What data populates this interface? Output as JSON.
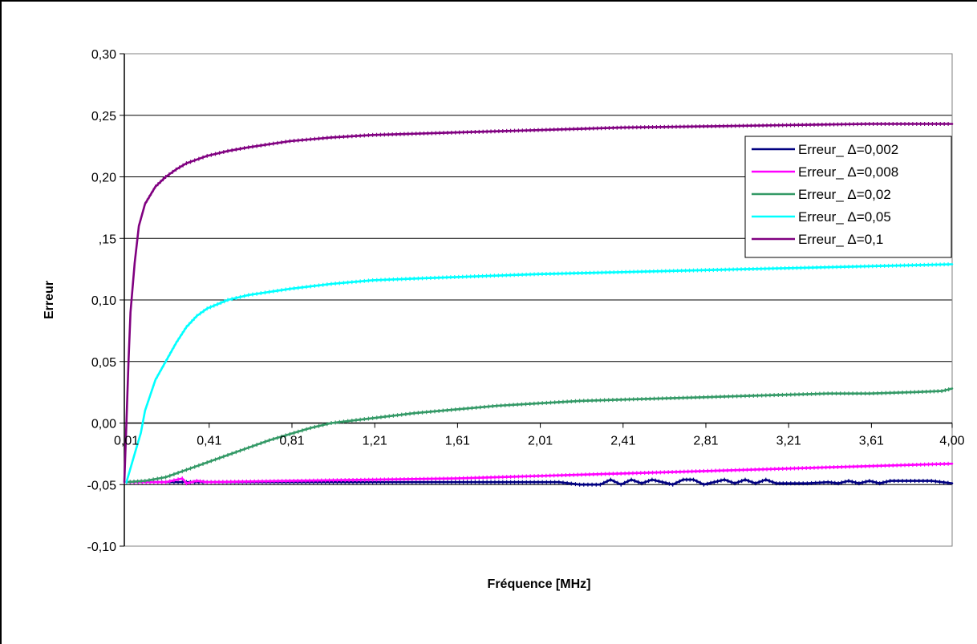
{
  "chart_data": {
    "type": "line",
    "title": "",
    "xlabel": "Fréquence [MHz]",
    "ylabel": "Erreur",
    "xlim": [
      0.0,
      4.0
    ],
    "ylim": [
      -0.1,
      0.3
    ],
    "grid": true,
    "legend_position": "right",
    "y_ticks": [
      {
        "value": 0.3,
        "label": "0,30"
      },
      {
        "value": 0.25,
        "label": "0,25"
      },
      {
        "value": 0.2,
        "label": "0,20"
      },
      {
        "value": 0.15,
        "label": ",15"
      },
      {
        "value": 0.1,
        "label": "0,10"
      },
      {
        "value": 0.05,
        "label": "0,05"
      },
      {
        "value": 0.0,
        "label": "0,00"
      },
      {
        "value": -0.05,
        "label": "-0,05"
      },
      {
        "value": -0.1,
        "label": "-0,10"
      }
    ],
    "x_ticks": [
      {
        "value": 0.01,
        "label": "0,01"
      },
      {
        "value": 0.41,
        "label": "0,41"
      },
      {
        "value": 0.81,
        "label": "0,81"
      },
      {
        "value": 1.21,
        "label": "1,21"
      },
      {
        "value": 1.61,
        "label": "1,61"
      },
      {
        "value": 2.01,
        "label": "2,01"
      },
      {
        "value": 2.41,
        "label": "2,41"
      },
      {
        "value": 2.81,
        "label": "2,81"
      },
      {
        "value": 3.21,
        "label": "3,21"
      },
      {
        "value": 3.61,
        "label": "3,61"
      },
      {
        "value": 4.0,
        "label": "4,00"
      }
    ],
    "series": [
      {
        "name": "Erreur_ Δ=0,002",
        "color": "#000080",
        "x": [
          0.01,
          0.2,
          0.4,
          0.8,
          1.2,
          1.6,
          2.0,
          2.1,
          2.2,
          2.3,
          2.35,
          2.4,
          2.45,
          2.5,
          2.55,
          2.6,
          2.65,
          2.7,
          2.75,
          2.8,
          2.85,
          2.9,
          2.95,
          3.0,
          3.05,
          3.1,
          3.15,
          3.2,
          3.3,
          3.4,
          3.45,
          3.5,
          3.55,
          3.6,
          3.65,
          3.7,
          3.8,
          3.9,
          4.0
        ],
        "y": [
          -0.048,
          -0.048,
          -0.048,
          -0.048,
          -0.048,
          -0.048,
          -0.048,
          -0.048,
          -0.05,
          -0.05,
          -0.046,
          -0.05,
          -0.046,
          -0.049,
          -0.046,
          -0.048,
          -0.05,
          -0.046,
          -0.046,
          -0.05,
          -0.048,
          -0.046,
          -0.049,
          -0.046,
          -0.049,
          -0.046,
          -0.049,
          -0.049,
          -0.049,
          -0.048,
          -0.049,
          -0.047,
          -0.049,
          -0.047,
          -0.049,
          -0.047,
          -0.047,
          -0.047,
          -0.049
        ]
      },
      {
        "name": "Erreur_ Δ=0,008",
        "color": "#FF00FF",
        "x": [
          0.01,
          0.2,
          0.28,
          0.3,
          0.35,
          0.4,
          0.8,
          1.2,
          1.6,
          2.0,
          2.4,
          2.8,
          3.2,
          3.6,
          4.0
        ],
        "y": [
          -0.048,
          -0.048,
          -0.045,
          -0.049,
          -0.047,
          -0.048,
          -0.047,
          -0.046,
          -0.045,
          -0.043,
          -0.041,
          -0.039,
          -0.037,
          -0.035,
          -0.033
        ]
      },
      {
        "name": "Erreur_ Δ=0,02",
        "color": "#339966",
        "x": [
          0.01,
          0.1,
          0.2,
          0.3,
          0.4,
          0.5,
          0.6,
          0.7,
          0.8,
          0.9,
          1.0,
          1.1,
          1.2,
          1.4,
          1.6,
          1.8,
          2.0,
          2.2,
          2.4,
          2.6,
          2.8,
          3.0,
          3.2,
          3.4,
          3.6,
          3.8,
          3.95,
          4.0
        ],
        "y": [
          -0.048,
          -0.047,
          -0.044,
          -0.038,
          -0.032,
          -0.026,
          -0.02,
          -0.014,
          -0.009,
          -0.004,
          0.0,
          0.002,
          0.004,
          0.008,
          0.011,
          0.014,
          0.016,
          0.018,
          0.019,
          0.02,
          0.021,
          0.022,
          0.023,
          0.024,
          0.024,
          0.025,
          0.026,
          0.028
        ]
      },
      {
        "name": "Erreur_ Δ=0,05",
        "color": "#00FFFF",
        "x": [
          0.01,
          0.05,
          0.08,
          0.1,
          0.15,
          0.2,
          0.25,
          0.3,
          0.35,
          0.4,
          0.5,
          0.6,
          0.8,
          1.0,
          1.2,
          1.5,
          2.0,
          2.5,
          3.0,
          3.5,
          4.0
        ],
        "y": [
          -0.048,
          -0.025,
          -0.008,
          0.01,
          0.035,
          0.05,
          0.065,
          0.078,
          0.087,
          0.093,
          0.1,
          0.104,
          0.109,
          0.113,
          0.116,
          0.118,
          0.121,
          0.123,
          0.125,
          0.127,
          0.129
        ]
      },
      {
        "name": "Erreur_ Δ=0,1",
        "color": "#800080",
        "x": [
          0.0,
          0.01,
          0.02,
          0.03,
          0.05,
          0.07,
          0.1,
          0.15,
          0.2,
          0.25,
          0.3,
          0.4,
          0.5,
          0.6,
          0.8,
          1.0,
          1.2,
          1.6,
          2.0,
          2.4,
          2.8,
          3.2,
          3.6,
          4.0
        ],
        "y": [
          -0.048,
          0.0,
          0.05,
          0.09,
          0.13,
          0.16,
          0.178,
          0.192,
          0.2,
          0.206,
          0.211,
          0.217,
          0.221,
          0.224,
          0.229,
          0.232,
          0.234,
          0.236,
          0.238,
          0.24,
          0.241,
          0.242,
          0.243,
          0.243
        ]
      }
    ]
  }
}
